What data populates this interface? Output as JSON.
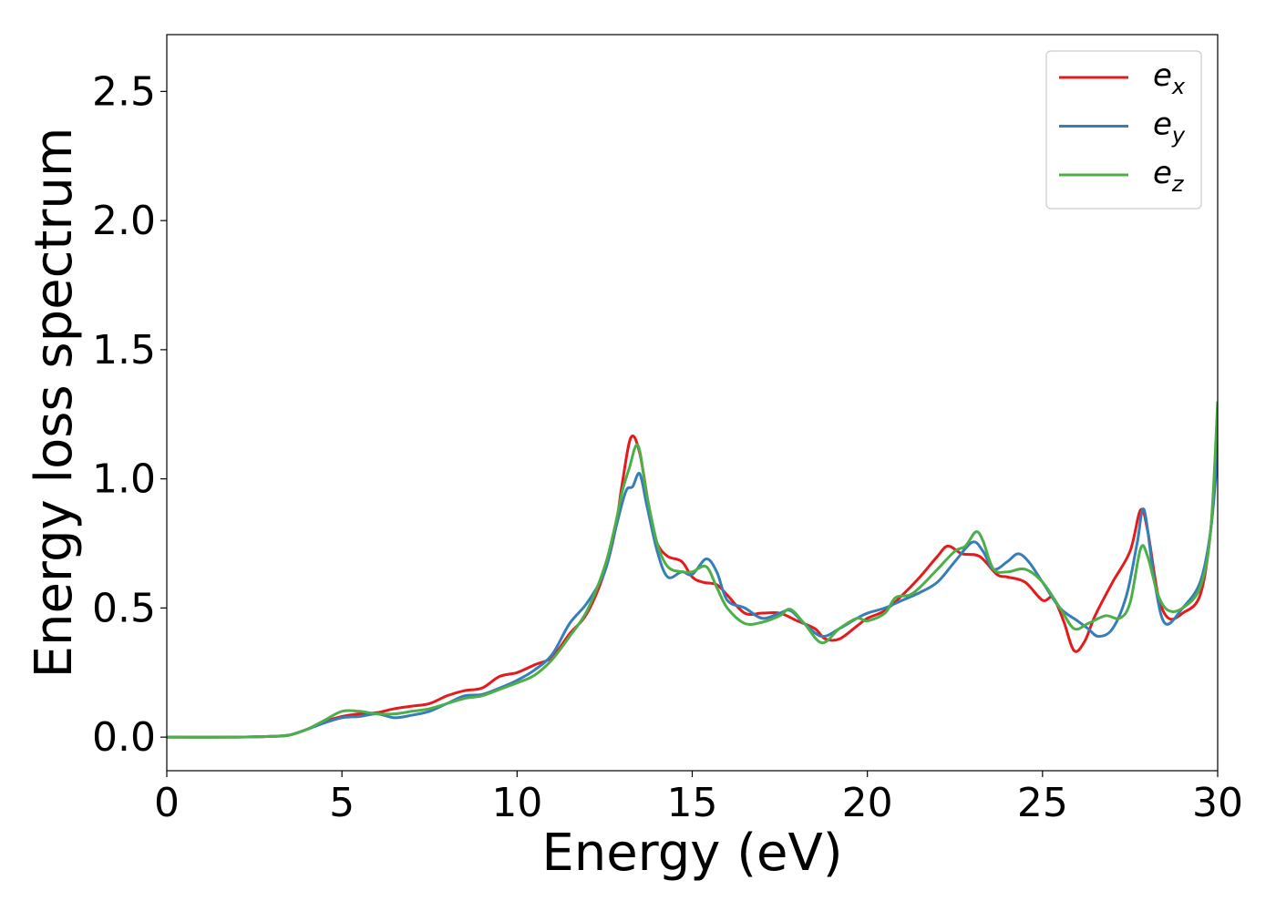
{
  "chart_data": {
    "type": "line",
    "title": "",
    "xlabel": "Energy (eV)",
    "ylabel": "Energy loss spectrum",
    "xlim": [
      0,
      30
    ],
    "ylim": [
      -0.13,
      2.72
    ],
    "xticks": [
      "0",
      "5",
      "10",
      "15",
      "20",
      "25",
      "30"
    ],
    "yticks": [
      "0.0",
      "0.5",
      "1.0",
      "1.5",
      "2.0",
      "2.5"
    ],
    "xtick_values": [
      0,
      5,
      10,
      15,
      20,
      25,
      30
    ],
    "ytick_values": [
      0.0,
      0.5,
      1.0,
      1.5,
      2.0,
      2.5
    ],
    "grid": false,
    "legend_position": "top-right",
    "series": [
      {
        "name": "e_x",
        "label_base": "e",
        "label_sub": "x",
        "color": "#e41a1c",
        "points": [
          [
            0,
            0
          ],
          [
            2,
            0
          ],
          [
            3,
            0.003
          ],
          [
            3.5,
            0.008
          ],
          [
            4,
            0.03
          ],
          [
            4.5,
            0.06
          ],
          [
            5,
            0.08
          ],
          [
            5.5,
            0.09
          ],
          [
            6,
            0.095
          ],
          [
            6.5,
            0.11
          ],
          [
            7,
            0.12
          ],
          [
            7.5,
            0.13
          ],
          [
            8,
            0.16
          ],
          [
            8.5,
            0.18
          ],
          [
            9,
            0.19
          ],
          [
            9.5,
            0.235
          ],
          [
            10,
            0.25
          ],
          [
            10.5,
            0.28
          ],
          [
            11,
            0.31
          ],
          [
            11.5,
            0.4
          ],
          [
            12,
            0.48
          ],
          [
            12.5,
            0.64
          ],
          [
            12.8,
            0.8
          ],
          [
            13,
            0.98
          ],
          [
            13.25,
            1.16
          ],
          [
            13.5,
            1.1
          ],
          [
            13.8,
            0.86
          ],
          [
            14,
            0.75
          ],
          [
            14.3,
            0.7
          ],
          [
            14.7,
            0.68
          ],
          [
            15,
            0.62
          ],
          [
            15.3,
            0.6
          ],
          [
            15.7,
            0.59
          ],
          [
            16,
            0.55
          ],
          [
            16.5,
            0.48
          ],
          [
            17,
            0.48
          ],
          [
            17.5,
            0.48
          ],
          [
            18,
            0.45
          ],
          [
            18.5,
            0.42
          ],
          [
            18.8,
            0.38
          ],
          [
            19.2,
            0.38
          ],
          [
            19.7,
            0.43
          ],
          [
            20,
            0.46
          ],
          [
            20.5,
            0.49
          ],
          [
            21,
            0.55
          ],
          [
            21.5,
            0.62
          ],
          [
            22,
            0.7
          ],
          [
            22.3,
            0.74
          ],
          [
            22.7,
            0.71
          ],
          [
            23.2,
            0.7
          ],
          [
            23.7,
            0.63
          ],
          [
            24,
            0.62
          ],
          [
            24.5,
            0.6
          ],
          [
            25,
            0.53
          ],
          [
            25.3,
            0.54
          ],
          [
            25.6,
            0.45
          ],
          [
            25.9,
            0.335
          ],
          [
            26.2,
            0.37
          ],
          [
            26.5,
            0.47
          ],
          [
            27,
            0.6
          ],
          [
            27.5,
            0.72
          ],
          [
            27.8,
            0.88
          ],
          [
            28,
            0.8
          ],
          [
            28.3,
            0.55
          ],
          [
            28.6,
            0.46
          ],
          [
            29,
            0.48
          ],
          [
            29.5,
            0.55
          ],
          [
            29.8,
            0.8
          ],
          [
            30,
            1.18
          ]
        ]
      },
      {
        "name": "e_y",
        "label_base": "e",
        "label_sub": "y",
        "color": "#377eb8",
        "points": [
          [
            0,
            0
          ],
          [
            2,
            0
          ],
          [
            3,
            0.003
          ],
          [
            3.5,
            0.008
          ],
          [
            4,
            0.03
          ],
          [
            4.5,
            0.055
          ],
          [
            5,
            0.075
          ],
          [
            5.5,
            0.08
          ],
          [
            6,
            0.09
          ],
          [
            6.5,
            0.075
          ],
          [
            7,
            0.085
          ],
          [
            7.5,
            0.1
          ],
          [
            8,
            0.13
          ],
          [
            8.5,
            0.16
          ],
          [
            9,
            0.165
          ],
          [
            9.5,
            0.19
          ],
          [
            10,
            0.22
          ],
          [
            10.5,
            0.26
          ],
          [
            11,
            0.32
          ],
          [
            11.5,
            0.44
          ],
          [
            12,
            0.52
          ],
          [
            12.5,
            0.64
          ],
          [
            12.8,
            0.8
          ],
          [
            13.1,
            0.95
          ],
          [
            13.3,
            0.97
          ],
          [
            13.5,
            1.02
          ],
          [
            13.7,
            0.9
          ],
          [
            14,
            0.72
          ],
          [
            14.3,
            0.62
          ],
          [
            14.7,
            0.64
          ],
          [
            15,
            0.63
          ],
          [
            15.4,
            0.69
          ],
          [
            15.7,
            0.64
          ],
          [
            16,
            0.53
          ],
          [
            16.5,
            0.5
          ],
          [
            17,
            0.46
          ],
          [
            17.5,
            0.48
          ],
          [
            17.8,
            0.49
          ],
          [
            18.2,
            0.44
          ],
          [
            18.7,
            0.39
          ],
          [
            19.2,
            0.42
          ],
          [
            19.7,
            0.46
          ],
          [
            20,
            0.48
          ],
          [
            20.5,
            0.5
          ],
          [
            21,
            0.53
          ],
          [
            21.5,
            0.56
          ],
          [
            22,
            0.6
          ],
          [
            22.5,
            0.68
          ],
          [
            23,
            0.755
          ],
          [
            23.3,
            0.72
          ],
          [
            23.6,
            0.65
          ],
          [
            24,
            0.68
          ],
          [
            24.3,
            0.71
          ],
          [
            24.6,
            0.68
          ],
          [
            25,
            0.6
          ],
          [
            25.5,
            0.5
          ],
          [
            26,
            0.45
          ],
          [
            26.3,
            0.42
          ],
          [
            26.6,
            0.39
          ],
          [
            27,
            0.42
          ],
          [
            27.4,
            0.55
          ],
          [
            27.7,
            0.75
          ],
          [
            27.9,
            0.88
          ],
          [
            28.2,
            0.6
          ],
          [
            28.5,
            0.44
          ],
          [
            29,
            0.5
          ],
          [
            29.5,
            0.6
          ],
          [
            29.8,
            0.8
          ],
          [
            30,
            1.1
          ]
        ]
      },
      {
        "name": "e_z",
        "label_base": "e",
        "label_sub": "z",
        "color": "#4daf4a",
        "points": [
          [
            0,
            0
          ],
          [
            2,
            0
          ],
          [
            3,
            0.003
          ],
          [
            3.5,
            0.008
          ],
          [
            4,
            0.03
          ],
          [
            4.5,
            0.065
          ],
          [
            5,
            0.1
          ],
          [
            5.5,
            0.1
          ],
          [
            6,
            0.09
          ],
          [
            6.5,
            0.09
          ],
          [
            7,
            0.1
          ],
          [
            7.5,
            0.11
          ],
          [
            8,
            0.13
          ],
          [
            8.5,
            0.15
          ],
          [
            9,
            0.16
          ],
          [
            9.5,
            0.185
          ],
          [
            10,
            0.21
          ],
          [
            10.5,
            0.24
          ],
          [
            11,
            0.3
          ],
          [
            11.5,
            0.39
          ],
          [
            12,
            0.49
          ],
          [
            12.5,
            0.66
          ],
          [
            12.8,
            0.82
          ],
          [
            13,
            0.95
          ],
          [
            13.2,
            1.04
          ],
          [
            13.45,
            1.13
          ],
          [
            13.7,
            0.94
          ],
          [
            14,
            0.75
          ],
          [
            14.3,
            0.66
          ],
          [
            14.7,
            0.64
          ],
          [
            15,
            0.64
          ],
          [
            15.4,
            0.66
          ],
          [
            15.7,
            0.58
          ],
          [
            16,
            0.5
          ],
          [
            16.5,
            0.44
          ],
          [
            17,
            0.445
          ],
          [
            17.5,
            0.47
          ],
          [
            17.8,
            0.495
          ],
          [
            18.2,
            0.44
          ],
          [
            18.7,
            0.365
          ],
          [
            19.2,
            0.42
          ],
          [
            19.7,
            0.46
          ],
          [
            20,
            0.45
          ],
          [
            20.5,
            0.48
          ],
          [
            20.8,
            0.54
          ],
          [
            21.2,
            0.55
          ],
          [
            21.5,
            0.58
          ],
          [
            22,
            0.65
          ],
          [
            22.5,
            0.72
          ],
          [
            22.8,
            0.74
          ],
          [
            23.1,
            0.795
          ],
          [
            23.3,
            0.76
          ],
          [
            23.6,
            0.65
          ],
          [
            24,
            0.64
          ],
          [
            24.5,
            0.65
          ],
          [
            25,
            0.6
          ],
          [
            25.5,
            0.5
          ],
          [
            25.9,
            0.42
          ],
          [
            26.3,
            0.44
          ],
          [
            26.8,
            0.47
          ],
          [
            27.2,
            0.46
          ],
          [
            27.5,
            0.52
          ],
          [
            27.8,
            0.73
          ],
          [
            28,
            0.7
          ],
          [
            28.3,
            0.55
          ],
          [
            28.6,
            0.49
          ],
          [
            29,
            0.5
          ],
          [
            29.5,
            0.58
          ],
          [
            29.8,
            0.8
          ],
          [
            30,
            1.3
          ]
        ]
      }
    ]
  }
}
